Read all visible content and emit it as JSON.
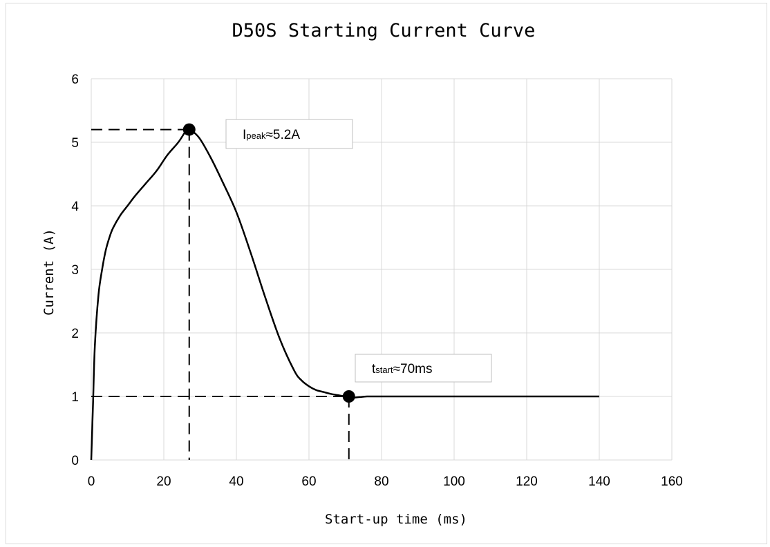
{
  "chart_data": {
    "type": "line",
    "title": "D50S Starting Current Curve",
    "xlabel": "Start-up time (ms)",
    "ylabel": "Current (A)",
    "xlim": [
      0,
      160
    ],
    "ylim": [
      0,
      6
    ],
    "xticks": [
      0,
      20,
      40,
      60,
      80,
      100,
      120,
      140,
      160
    ],
    "yticks": [
      0,
      1,
      2,
      3,
      4,
      5,
      6
    ],
    "grid": true,
    "series": [
      {
        "color": "#000000",
        "x": [
          0,
          0.5,
          1,
          2,
          3,
          4,
          5,
          6,
          8,
          10,
          12,
          15,
          18,
          21,
          24,
          26,
          27,
          28,
          30,
          33,
          36,
          40,
          44,
          48,
          52,
          56,
          58,
          60,
          62,
          64,
          66,
          68,
          70,
          71,
          72,
          74,
          76,
          80,
          90,
          100,
          110,
          120,
          130,
          140
        ],
        "y": [
          0.0,
          0.9,
          1.8,
          2.6,
          3.0,
          3.3,
          3.5,
          3.65,
          3.85,
          4.0,
          4.15,
          4.35,
          4.55,
          4.8,
          5.0,
          5.17,
          5.2,
          5.17,
          5.05,
          4.75,
          4.4,
          3.9,
          3.25,
          2.55,
          1.9,
          1.4,
          1.25,
          1.16,
          1.1,
          1.07,
          1.04,
          1.02,
          1.0,
          0.99,
          0.98,
          0.99,
          1.0,
          1.0,
          1.0,
          1.0,
          1.0,
          1.0,
          1.0,
          1.0
        ]
      }
    ],
    "annotations": [
      {
        "main": "I",
        "sub": "peak",
        "tail": "≈5.2A",
        "point": [
          27,
          5.2
        ]
      },
      {
        "main": "t",
        "sub": "start",
        "tail": "≈70ms",
        "point": [
          71,
          1.0
        ]
      }
    ]
  }
}
